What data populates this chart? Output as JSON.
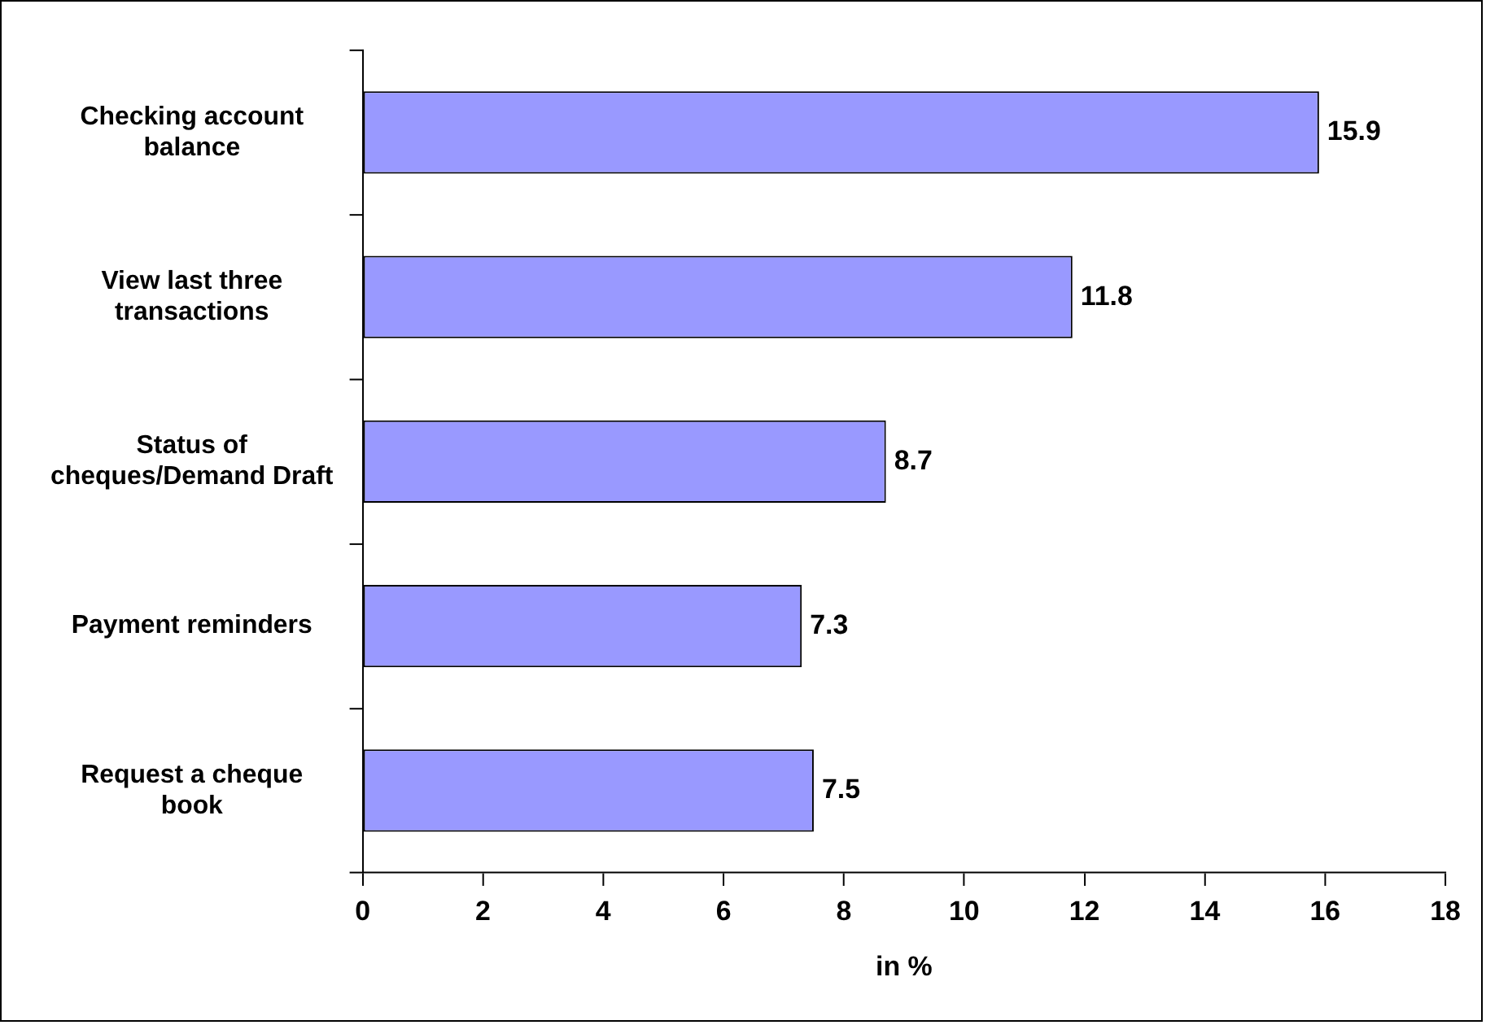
{
  "chart_data": {
    "type": "bar",
    "orientation": "horizontal",
    "xlabel": "in %",
    "categories": [
      "Checking account balance",
      "View last three transactions",
      "Status of cheques/Demand Draft",
      "Payment reminders",
      "Request a cheque book"
    ],
    "values": [
      15.9,
      11.8,
      8.7,
      7.3,
      7.5
    ],
    "color": "#9999ff",
    "xlim": [
      0,
      18
    ],
    "xticks": [
      0,
      2,
      4,
      6,
      8,
      10,
      12,
      14,
      16,
      18
    ],
    "data_labels": true
  }
}
